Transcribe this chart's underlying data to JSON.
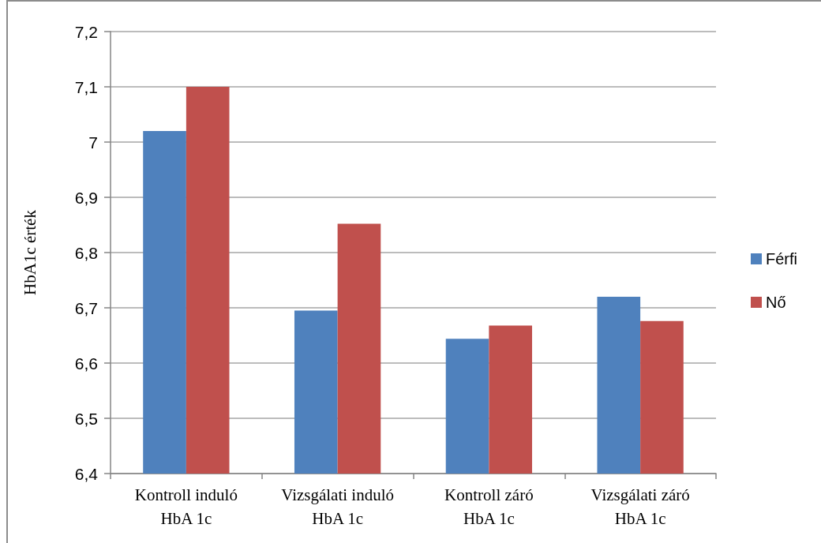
{
  "chart_data": {
    "type": "bar",
    "categories": [
      "Kontroll induló\nHbA 1c",
      "Vizsgálati induló\nHbA 1c",
      "Kontroll záró\nHbA 1c",
      "Vizsgálati záró\nHbA 1c"
    ],
    "series": [
      {
        "name": "Férfi",
        "color": "#4f81bd",
        "values": [
          7.02,
          6.695,
          6.644,
          6.72
        ]
      },
      {
        "name": "Nő",
        "color": "#c0504d",
        "values": [
          7.1,
          6.852,
          6.668,
          6.676
        ]
      }
    ],
    "ylabel": "HbA1c érték",
    "ylim": [
      6.4,
      7.2
    ],
    "yticks": [
      {
        "value": 6.4,
        "label": "6,4"
      },
      {
        "value": 6.5,
        "label": "6,5"
      },
      {
        "value": 6.6,
        "label": "6,6"
      },
      {
        "value": 6.7,
        "label": "6,7"
      },
      {
        "value": 6.8,
        "label": "6,8"
      },
      {
        "value": 6.9,
        "label": "6,9"
      },
      7,
      {
        "value": 7.1,
        "label": "7,1"
      },
      {
        "value": 7.2,
        "label": "7,2"
      }
    ],
    "grid": "y",
    "legend": "right"
  }
}
